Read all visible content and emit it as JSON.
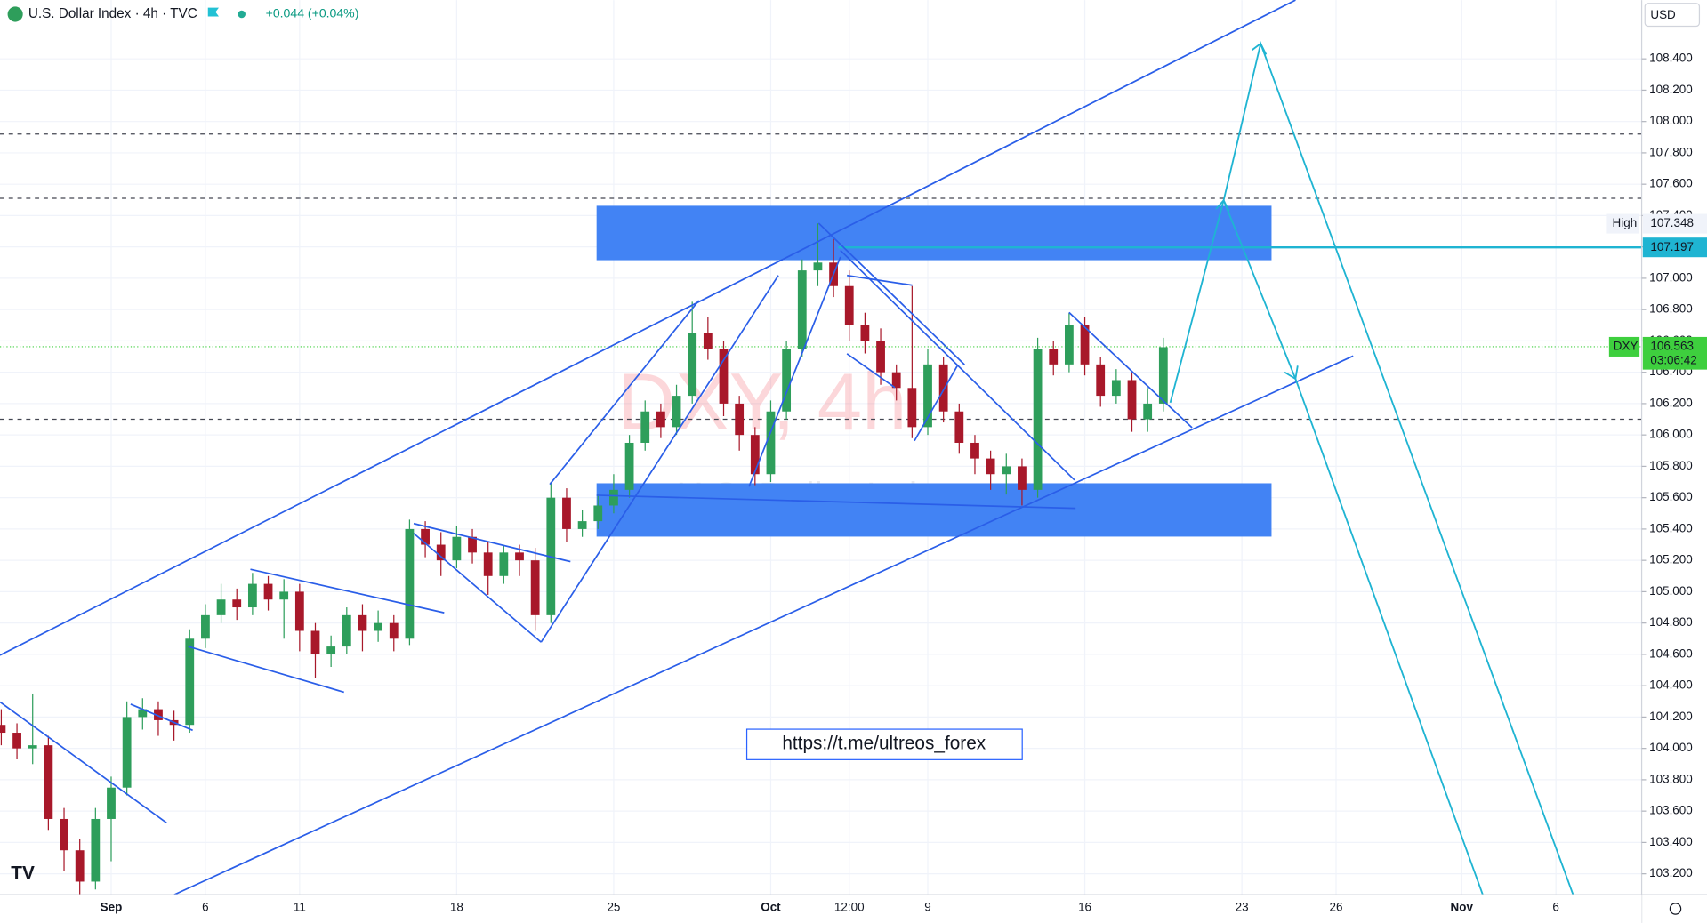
{
  "chart_data": {
    "type": "candlestick",
    "title": "U.S. Dollar Index · 4h · TVC",
    "change_label": "+0.044 (+0.04%)",
    "currency": "USD",
    "watermark": "DXY, 4h",
    "watermark_subtitle": "U.S. Dollar Index",
    "link": "https://t.me/ultreos_forex",
    "symbol": "DXY",
    "countdown": "03:06:42",
    "high_label": "High",
    "session_high": 107.348,
    "last": 106.563,
    "level": 107.197,
    "dashed_levels": [
      107.92,
      107.51,
      106.1
    ],
    "up_color": "#2e9e5b",
    "down_color": "#a8182a",
    "xlim": [
      -3.54,
      48.73
    ],
    "ylim": [
      103.067,
      108.775
    ],
    "xticks": [
      {
        "value": 0,
        "label": "Sep"
      },
      {
        "value": 3,
        "label": "6"
      },
      {
        "value": 6,
        "label": "11"
      },
      {
        "value": 11,
        "label": "18"
      },
      {
        "value": 16,
        "label": "25"
      },
      {
        "value": 21,
        "label": "Oct"
      },
      {
        "value": 23.5,
        "label": "12:00"
      },
      {
        "value": 26,
        "label": "9"
      },
      {
        "value": 31,
        "label": "16"
      },
      {
        "value": 36,
        "label": "23"
      },
      {
        "value": 39,
        "label": "26"
      },
      {
        "value": 43,
        "label": "Nov"
      },
      {
        "value": 46,
        "label": "6"
      }
    ],
    "yticks": [
      {
        "value": 103.2,
        "label": "103.200"
      },
      {
        "value": 103.4,
        "label": "103.400"
      },
      {
        "value": 103.6,
        "label": "103.600"
      },
      {
        "value": 103.8,
        "label": "103.800"
      },
      {
        "value": 104,
        "label": "104.000"
      },
      {
        "value": 104.2,
        "label": "104.200"
      },
      {
        "value": 104.4,
        "label": "104.400"
      },
      {
        "value": 104.6,
        "label": "104.600"
      },
      {
        "value": 104.8,
        "label": "104.800"
      },
      {
        "value": 105,
        "label": "105.000"
      },
      {
        "value": 105.2,
        "label": "105.200"
      },
      {
        "value": 105.4,
        "label": "105.400"
      },
      {
        "value": 105.6,
        "label": "105.600"
      },
      {
        "value": 105.8,
        "label": "105.800"
      },
      {
        "value": 106,
        "label": "106.000"
      },
      {
        "value": 106.2,
        "label": "106.200"
      },
      {
        "value": 106.4,
        "label": "106.400"
      },
      {
        "value": 106.6,
        "label": "106.600"
      },
      {
        "value": 106.8,
        "label": "106.800"
      },
      {
        "value": 107,
        "label": "107.000"
      },
      {
        "value": 107.2,
        "label": "107.200"
      },
      {
        "value": 107.4,
        "label": "107.400"
      },
      {
        "value": 107.6,
        "label": "107.600"
      },
      {
        "value": 107.8,
        "label": "107.800"
      },
      {
        "value": 108,
        "label": "108.000"
      },
      {
        "value": 108.2,
        "label": "108.200"
      },
      {
        "value": 108.4,
        "label": "108.400"
      }
    ],
    "candles": {
      "x": [
        -3.5,
        -3,
        -2.5,
        -2,
        -1.5,
        -1,
        -0.5,
        0,
        0.5,
        1,
        1.5,
        2,
        2.5,
        3,
        3.5,
        4,
        4.5,
        5,
        5.5,
        6,
        6.5,
        7,
        7.5,
        8,
        8.5,
        9,
        9.5,
        10,
        10.5,
        11,
        11.5,
        12,
        12.5,
        13,
        13.5,
        14,
        14.5,
        15,
        15.5,
        16,
        16.5,
        17,
        17.5,
        18,
        18.5,
        19,
        19.5,
        20,
        20.5,
        21,
        21.5,
        22,
        22.5,
        23,
        23.5,
        24,
        24.5,
        25,
        25.5,
        26,
        26.5,
        27,
        27.5,
        28,
        28.5,
        29,
        29.5,
        30,
        30.5,
        31,
        31.5,
        32,
        32.5,
        33,
        33.5
      ],
      "open": [
        104.15,
        104.1,
        104,
        104.02,
        103.55,
        103.35,
        103.15,
        103.55,
        103.75,
        104.2,
        104.25,
        104.18,
        104.15,
        104.7,
        104.85,
        104.95,
        104.9,
        105.05,
        104.95,
        105,
        104.75,
        104.6,
        104.65,
        104.85,
        104.75,
        104.8,
        104.7,
        105.4,
        105.3,
        105.2,
        105.35,
        105.25,
        105.1,
        105.25,
        105.2,
        104.85,
        105.6,
        105.4,
        105.45,
        105.55,
        105.65,
        105.95,
        106.15,
        106.05,
        106.25,
        106.65,
        106.55,
        106.2,
        106,
        105.75,
        106.15,
        106.55,
        107.05,
        107.1,
        106.95,
        106.7,
        106.6,
        106.4,
        106.3,
        106.05,
        106.45,
        106.15,
        105.95,
        105.85,
        105.75,
        105.8,
        105.65,
        106.55,
        106.45,
        106.7,
        106.45,
        106.25,
        106.35,
        106.1,
        106.2
      ],
      "high": [
        104.25,
        104.16,
        104.35,
        104.08,
        103.62,
        103.42,
        103.62,
        103.82,
        104.3,
        104.32,
        104.3,
        104.24,
        104.76,
        104.92,
        105.05,
        105.02,
        105.12,
        105.1,
        105.08,
        105.05,
        104.8,
        104.72,
        104.9,
        104.92,
        104.88,
        104.85,
        105.46,
        105.45,
        105.38,
        105.42,
        105.4,
        105.32,
        105.3,
        105.3,
        105.28,
        105.7,
        105.66,
        105.52,
        105.62,
        105.75,
        106,
        106.22,
        106.2,
        106.32,
        106.85,
        106.75,
        106.6,
        106.25,
        106.05,
        106.22,
        106.6,
        107.12,
        107.35,
        107.25,
        107.05,
        106.78,
        106.68,
        106.45,
        106.95,
        106.55,
        106.5,
        106.2,
        106,
        105.9,
        105.88,
        105.85,
        106.62,
        106.6,
        106.78,
        106.75,
        106.5,
        106.42,
        106.4,
        106.3,
        106.62
      ],
      "low": [
        104.02,
        103.93,
        103.9,
        103.48,
        103.22,
        103.05,
        103.1,
        103.28,
        103.7,
        104.12,
        104.08,
        104.05,
        104.1,
        104.64,
        104.8,
        104.82,
        104.85,
        104.88,
        104.7,
        104.62,
        104.45,
        104.52,
        104.6,
        104.62,
        104.68,
        104.62,
        104.66,
        105.22,
        105.1,
        105.15,
        105.18,
        104.98,
        105.05,
        105.1,
        104.75,
        104.8,
        105.32,
        105.35,
        105.4,
        105.5,
        105.6,
        105.9,
        105.98,
        106,
        106.2,
        106.48,
        106.12,
        105.9,
        105.68,
        105.7,
        106.1,
        106.5,
        106.95,
        106.88,
        106.6,
        106.52,
        106.32,
        106.22,
        105.98,
        106,
        106.08,
        105.88,
        105.75,
        105.65,
        105.62,
        105.55,
        105.6,
        106.38,
        106.4,
        106.38,
        106.18,
        106.2,
        106.02,
        106.02,
        106.15
      ],
      "close": [
        104.1,
        104,
        104.02,
        103.55,
        103.35,
        103.15,
        103.55,
        103.75,
        104.2,
        104.25,
        104.18,
        104.15,
        104.7,
        104.85,
        104.95,
        104.9,
        105.05,
        104.95,
        105,
        104.75,
        104.6,
        104.65,
        104.85,
        104.75,
        104.8,
        104.7,
        105.4,
        105.3,
        105.2,
        105.35,
        105.25,
        105.1,
        105.25,
        105.2,
        104.85,
        105.6,
        105.4,
        105.45,
        105.55,
        105.65,
        105.95,
        106.15,
        106.05,
        106.25,
        106.65,
        106.55,
        106.2,
        106,
        105.75,
        106.15,
        106.55,
        107.05,
        107.1,
        106.95,
        106.7,
        106.6,
        106.4,
        106.3,
        106.05,
        106.45,
        106.15,
        105.95,
        105.85,
        105.75,
        105.8,
        105.65,
        106.55,
        106.45,
        106.7,
        106.45,
        106.25,
        106.35,
        106.1,
        106.2,
        106.56
      ]
    }
  }
}
